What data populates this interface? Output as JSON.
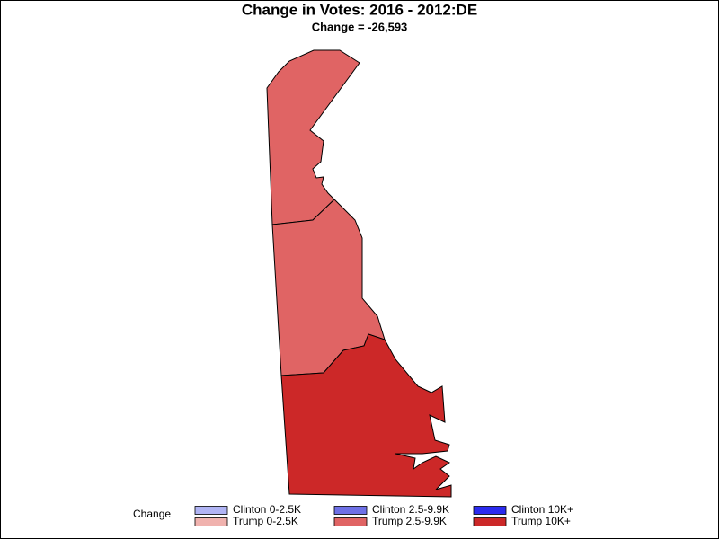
{
  "title": "Change in Votes: 2016 - 2012:DE",
  "subtitle": "Change = -26,593",
  "legend": {
    "title": "Change",
    "items": [
      {
        "label": "Clinton 0-2.5K",
        "color": "#b0b4f4"
      },
      {
        "label": "Clinton 2.5-9.9K",
        "color": "#6e70e6"
      },
      {
        "label": "Clinton 10K+",
        "color": "#2b2bef"
      },
      {
        "label": "Trump 0-2.5K",
        "color": "#f0b2ae"
      },
      {
        "label": "Trump 2.5-9.9K",
        "color": "#e06464"
      },
      {
        "label": "Trump 10K+",
        "color": "#cc2828"
      }
    ]
  },
  "regions": [
    {
      "category": 4
    },
    {
      "category": 4
    },
    {
      "category": 5
    }
  ]
}
